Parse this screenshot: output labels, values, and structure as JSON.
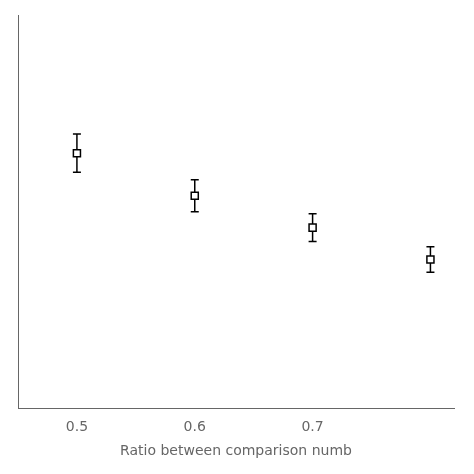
{
  "chart_data": {
    "type": "scatter",
    "xlabel": "Ratio between comparison numb",
    "x": [
      0.5,
      0.6,
      0.7,
      0.8
    ],
    "values": [
      0.84,
      0.8,
      0.77,
      0.74
    ],
    "yerr": [
      0.018,
      0.015,
      0.013,
      0.012
    ],
    "xlim": [
      0.45,
      0.82
    ],
    "xticks": [
      0.5,
      0.6,
      0.7
    ],
    "ylim": [
      0.6,
      0.97
    ],
    "color": "#000000",
    "marker": "square",
    "grid": false,
    "tick_labels": "x"
  }
}
